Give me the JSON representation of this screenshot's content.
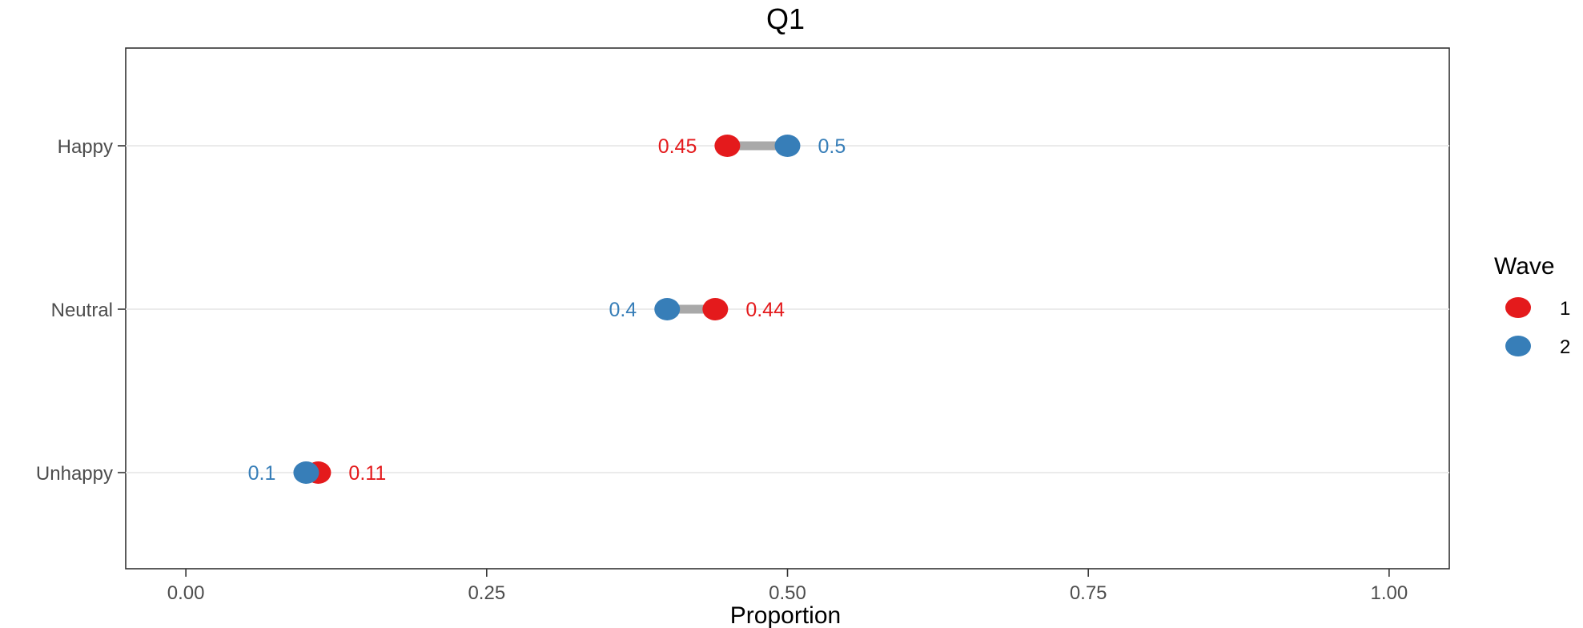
{
  "chart_data": {
    "type": "dumbbell",
    "title": "Q1",
    "xlabel": "Proportion",
    "ylabel": "",
    "xlim": [
      -0.05,
      1.05
    ],
    "x_ticks": [
      0,
      0.25,
      0.5,
      0.75,
      1
    ],
    "x_tick_labels": [
      "0.00",
      "0.25",
      "0.50",
      "0.75",
      "1.00"
    ],
    "categories": [
      "Happy",
      "Neutral",
      "Unhappy"
    ],
    "grid": "horizontal-major",
    "legend": {
      "title": "Wave",
      "position": "right"
    },
    "series": [
      {
        "name": "1",
        "color": "#e41a1c",
        "values": [
          0.45,
          0.44,
          0.11
        ],
        "labels": [
          "0.45",
          "0.44",
          "0.11"
        ]
      },
      {
        "name": "2",
        "color": "#377eb8",
        "values": [
          0.5,
          0.4,
          0.1
        ],
        "labels": [
          "0.5",
          "0.4",
          "0.1"
        ]
      }
    ],
    "connector_color": "#a9a9a9"
  }
}
